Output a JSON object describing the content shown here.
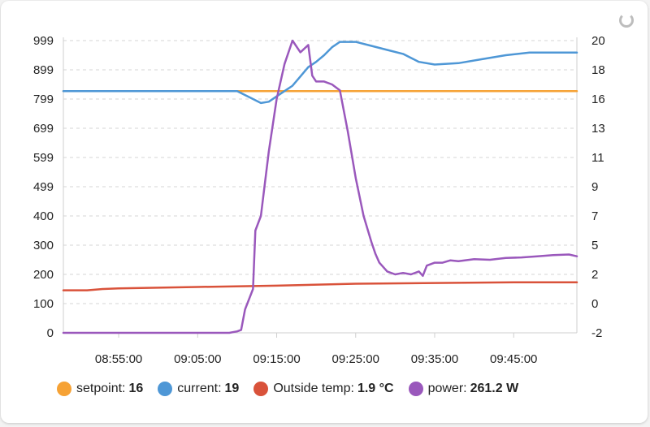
{
  "chart_data": {
    "type": "line",
    "x_ticks": [
      "08:55:00",
      "09:05:00",
      "09:15:00",
      "09:25:00",
      "09:35:00",
      "09:45:00"
    ],
    "x_range": [
      "08:48",
      "09:53"
    ],
    "y_left": {
      "ticks": [
        "0",
        "100",
        "200",
        "300",
        "400",
        "499",
        "599",
        "699",
        "799",
        "899",
        "999"
      ],
      "range": [
        0,
        1000
      ]
    },
    "y_right": {
      "ticks": [
        "-2",
        "0",
        "2",
        "5",
        "7",
        "9",
        "11",
        "13",
        "16",
        "18",
        "20"
      ],
      "range": [
        -2,
        20
      ]
    },
    "grid": true,
    "legend_position": "bottom",
    "series": [
      {
        "name": "setpoint",
        "axis": "right",
        "color": "#f6a235",
        "legend_value": "16",
        "points": [
          [
            "08:48",
            16.2
          ],
          [
            "09:53",
            16.2
          ]
        ]
      },
      {
        "name": "current",
        "axis": "right",
        "color": "#4e97d6",
        "legend_value": "19",
        "points": [
          [
            "08:48",
            16.2
          ],
          [
            "09:10",
            16.2
          ],
          [
            "09:12",
            15.6
          ],
          [
            "09:13",
            15.3
          ],
          [
            "09:14",
            15.4
          ],
          [
            "09:15",
            15.8
          ],
          [
            "09:16",
            16.2
          ],
          [
            "09:17",
            16.6
          ],
          [
            "09:18",
            17.3
          ],
          [
            "09:19",
            18.0
          ],
          [
            "09:20",
            18.4
          ],
          [
            "09:21",
            18.9
          ],
          [
            "09:22",
            19.5
          ],
          [
            "09:23",
            19.9
          ],
          [
            "09:25",
            19.9
          ],
          [
            "09:27",
            19.6
          ],
          [
            "09:29",
            19.3
          ],
          [
            "09:31",
            19.0
          ],
          [
            "09:33",
            18.4
          ],
          [
            "09:35",
            18.2
          ],
          [
            "09:38",
            18.3
          ],
          [
            "09:41",
            18.6
          ],
          [
            "09:44",
            18.9
          ],
          [
            "09:47",
            19.1
          ],
          [
            "09:53",
            19.1
          ]
        ]
      },
      {
        "name": "Outside temp",
        "axis": "right",
        "color": "#d9523a",
        "legend_value": "1.9 °C",
        "points": [
          [
            "08:48",
            1.2
          ],
          [
            "08:51",
            1.2
          ],
          [
            "08:53",
            1.3
          ],
          [
            "08:55",
            1.35
          ],
          [
            "09:05",
            1.45
          ],
          [
            "09:15",
            1.55
          ],
          [
            "09:25",
            1.7
          ],
          [
            "09:35",
            1.75
          ],
          [
            "09:45",
            1.8
          ],
          [
            "09:53",
            1.8
          ]
        ]
      },
      {
        "name": "power",
        "axis": "left",
        "color": "#9a58bc",
        "legend_value": "261.2 W",
        "points": [
          [
            "08:48",
            0
          ],
          [
            "09:08",
            0
          ],
          [
            "09:09",
            0
          ],
          [
            "09:10",
            5
          ],
          [
            "09:10.5",
            10
          ],
          [
            "09:11",
            80
          ],
          [
            "09:12",
            150
          ],
          [
            "09:12.3",
            350
          ],
          [
            "09:13",
            400
          ],
          [
            "09:14",
            620
          ],
          [
            "09:15",
            800
          ],
          [
            "09:16",
            920
          ],
          [
            "09:17",
            1000
          ],
          [
            "09:18",
            960
          ],
          [
            "09:19",
            985
          ],
          [
            "09:19.5",
            880
          ],
          [
            "09:20",
            860
          ],
          [
            "09:21",
            860
          ],
          [
            "09:22",
            850
          ],
          [
            "09:23",
            830
          ],
          [
            "09:24",
            690
          ],
          [
            "09:25",
            530
          ],
          [
            "09:26",
            400
          ],
          [
            "09:27",
            310
          ],
          [
            "09:27.5",
            270
          ],
          [
            "09:28",
            240
          ],
          [
            "09:29",
            210
          ],
          [
            "09:30",
            200
          ],
          [
            "09:31",
            205
          ],
          [
            "09:32",
            200
          ],
          [
            "09:33",
            210
          ],
          [
            "09:33.5",
            195
          ],
          [
            "09:34",
            230
          ],
          [
            "09:35",
            240
          ],
          [
            "09:36",
            240
          ],
          [
            "09:37",
            248
          ],
          [
            "09:38",
            245
          ],
          [
            "09:40",
            252
          ],
          [
            "09:42",
            250
          ],
          [
            "09:44",
            256
          ],
          [
            "09:46",
            258
          ],
          [
            "09:48",
            262
          ],
          [
            "09:50",
            266
          ],
          [
            "09:52",
            268
          ],
          [
            "09:53",
            262
          ]
        ]
      }
    ]
  }
}
